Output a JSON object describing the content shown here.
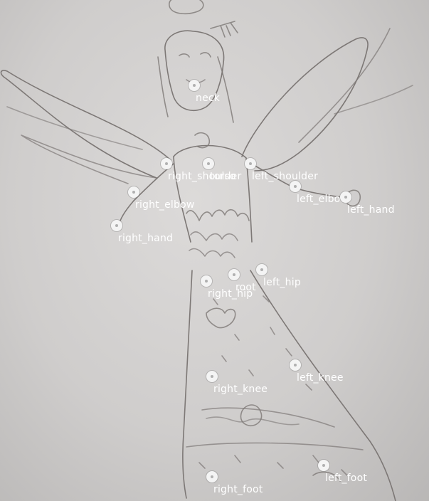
{
  "keypoints": [
    {
      "name": "neck",
      "label": "neck"
    },
    {
      "name": "right_shoulder",
      "label": "right_shoulder"
    },
    {
      "name": "torso",
      "label": "torso"
    },
    {
      "name": "left_shoulder",
      "label": "left_shoulder"
    },
    {
      "name": "right_elbow",
      "label": "right_elbow"
    },
    {
      "name": "left_elbow",
      "label": "left_elbow"
    },
    {
      "name": "left_hand",
      "label": "left_hand"
    },
    {
      "name": "right_hand",
      "label": "right_hand"
    },
    {
      "name": "root",
      "label": "root"
    },
    {
      "name": "left_hip",
      "label": "left_hip"
    },
    {
      "name": "right_hip",
      "label": "right_hip"
    },
    {
      "name": "left_knee",
      "label": "left_knee"
    },
    {
      "name": "right_knee",
      "label": "right_knee"
    },
    {
      "name": "left_foot",
      "label": "left_foot"
    },
    {
      "name": "right_foot",
      "label": "right_foot"
    }
  ],
  "colors": {
    "marker": "#f4f4f4",
    "label": "#ffffff",
    "pencil": "#7a7573",
    "paper": "#d3d1d0"
  }
}
